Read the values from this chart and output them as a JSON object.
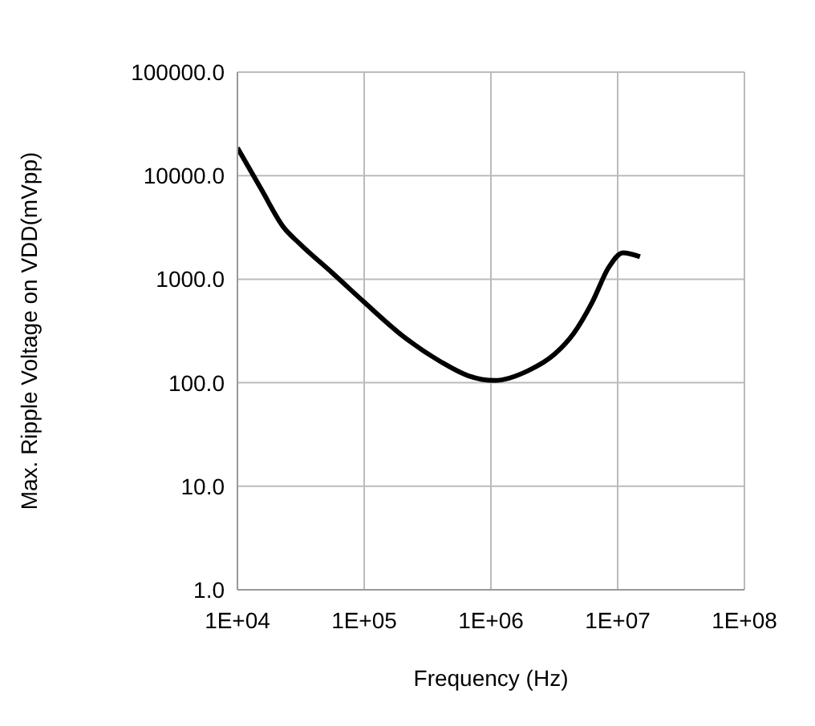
{
  "chart_data": {
    "type": "line",
    "xlabel": "Frequency (Hz)",
    "ylabel": "Max. Ripple Voltage on VDD(mVpp)",
    "log": "xy",
    "grid": true,
    "marker": "none",
    "line_style": "solid",
    "xlim": [
      10000,
      100000000
    ],
    "ylim": [
      1,
      100000
    ],
    "xticks": [
      {
        "value": 10000,
        "label": "1E+04"
      },
      {
        "value": 100000,
        "label": "1E+05"
      },
      {
        "value": 1000000,
        "label": "1E+06"
      },
      {
        "value": 10000000,
        "label": "1E+07"
      },
      {
        "value": 100000000,
        "label": "1E+08"
      }
    ],
    "yticks": [
      {
        "value": 1,
        "label": "1.0"
      },
      {
        "value": 10,
        "label": "10.0"
      },
      {
        "value": 100,
        "label": "100.0"
      },
      {
        "value": 1000,
        "label": "1000.0"
      },
      {
        "value": 10000,
        "label": "10000.0"
      },
      {
        "value": 100000,
        "label": "100000.0"
      }
    ],
    "series": [
      {
        "color": "#000000",
        "x": [
          10000,
          15500,
          23000,
          31000,
          56000,
          100000,
          200000,
          400000,
          660000,
          1070000,
          1950000,
          3200000,
          4500000,
          6300000,
          8500000,
          11000000,
          15000000
        ],
        "values": [
          18600,
          7300,
          3200,
          2200,
          1150,
          600,
          285,
          160,
          117,
          105,
          130,
          190,
          300,
          600,
          1300,
          1800,
          1650
        ]
      }
    ]
  }
}
